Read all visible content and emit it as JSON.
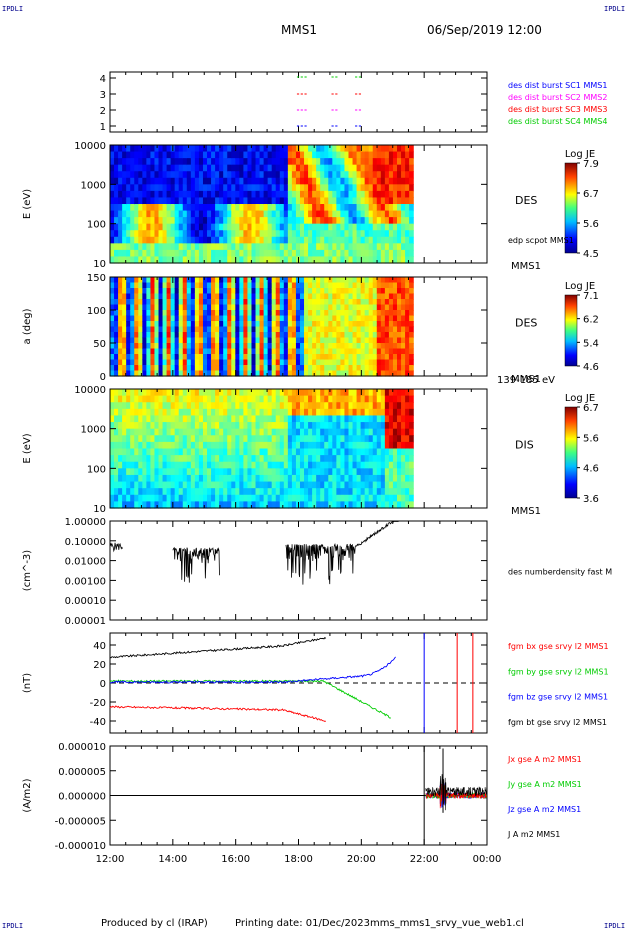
{
  "corner_label": "IPDLI",
  "header": {
    "spacecraft": "MMS1",
    "datetime": "06/Sep/2019 12:00"
  },
  "footer": {
    "produced_by": "Produced by cl (IRAP)",
    "printing_date": "Printing date: 01/Dec/2023",
    "file": "mms_mms1_srvy_vue_web1.cl"
  },
  "colors": {
    "blue": "#0000ff",
    "magenta": "#ff00ff",
    "red": "#ff0000",
    "green": "#00cc00",
    "black": "#000000"
  },
  "chart_data": [
    {
      "id": "panel_burst",
      "type": "line",
      "yticks": [
        "1",
        "2",
        "3",
        "4"
      ],
      "legend": [
        {
          "text": "des dist burst SC1 MMS1",
          "color": "#0000ff"
        },
        {
          "text": "des dist burst SC2 MMS2",
          "color": "#ff00ff"
        },
        {
          "text": "des dist burst SC3 MMS3",
          "color": "#ff0000"
        },
        {
          "text": "des dist burst SC4 MMS4",
          "color": "#00cc00"
        }
      ]
    },
    {
      "id": "panel_des_energy",
      "type": "heatmap",
      "ylabel": "E (eV)",
      "yticks": [
        "10",
        "100",
        "1000",
        "10000"
      ],
      "label": "DES",
      "sublabel": "edp scpot MMS1",
      "spacecraft": "MMS1",
      "colorbar": {
        "title": "Log JE",
        "ticks": [
          "7.9",
          "6.7",
          "5.6",
          "4.5"
        ]
      }
    },
    {
      "id": "panel_des_pitch",
      "type": "heatmap",
      "ylabel": "a (deg)",
      "yticks": [
        "0",
        "50",
        "100",
        "150"
      ],
      "label": "DES",
      "spacecraft": "MMS1",
      "energy_range": "139-185 eV",
      "colorbar": {
        "title": "Log JE",
        "ticks": [
          "7.1",
          "6.2",
          "5.4",
          "4.6"
        ]
      }
    },
    {
      "id": "panel_dis_energy",
      "type": "heatmap",
      "ylabel": "E (eV)",
      "yticks": [
        "10",
        "100",
        "1000",
        "10000"
      ],
      "label": "DIS",
      "spacecraft": "MMS1",
      "colorbar": {
        "title": "Log JE",
        "ticks": [
          "6.7",
          "5.6",
          "4.6",
          "3.6"
        ]
      }
    },
    {
      "id": "panel_density",
      "type": "line",
      "ylabel": "(cm^-3)",
      "yticks": [
        "0.00001",
        "0.00010",
        "0.00100",
        "0.01000",
        "0.10000",
        "1.00000"
      ],
      "legend": [
        {
          "text": "des numberdensity fast M",
          "color": "#000000"
        }
      ]
    },
    {
      "id": "panel_bfield",
      "type": "line",
      "ylabel": "(nT)",
      "ylim": [
        -50,
        50
      ],
      "yticks": [
        "-40",
        "-20",
        "0",
        "20",
        "40"
      ],
      "legend": [
        {
          "text": "fgm bx gse srvy l2 MMS1",
          "color": "#ff0000"
        },
        {
          "text": "fgm by gse srvy l2 MMS1",
          "color": "#00cc00"
        },
        {
          "text": "fgm bz gse srvy l2 MMS1",
          "color": "#0000ff"
        },
        {
          "text": "fgm bt gse srvy l2 MMS1",
          "color": "#000000"
        }
      ]
    },
    {
      "id": "panel_current",
      "type": "line",
      "ylabel": "(A/m2)",
      "ylim": [
        -1e-05,
        1e-05
      ],
      "yticks": [
        "-0.000010",
        "-0.000005",
        "0.000000",
        "0.000005",
        "0.000010"
      ],
      "legend": [
        {
          "text": "Jx gse A m2 MMS1",
          "color": "#ff0000"
        },
        {
          "text": "Jy gse A m2 MMS1",
          "color": "#00cc00"
        },
        {
          "text": "Jz gse A m2 MMS1",
          "color": "#0000ff"
        },
        {
          "text": "J A m2 MMS1",
          "color": "#000000"
        }
      ]
    }
  ],
  "xaxis": {
    "ticks": [
      "12:00",
      "14:00",
      "16:00",
      "18:00",
      "20:00",
      "22:00",
      "00:00"
    ]
  }
}
